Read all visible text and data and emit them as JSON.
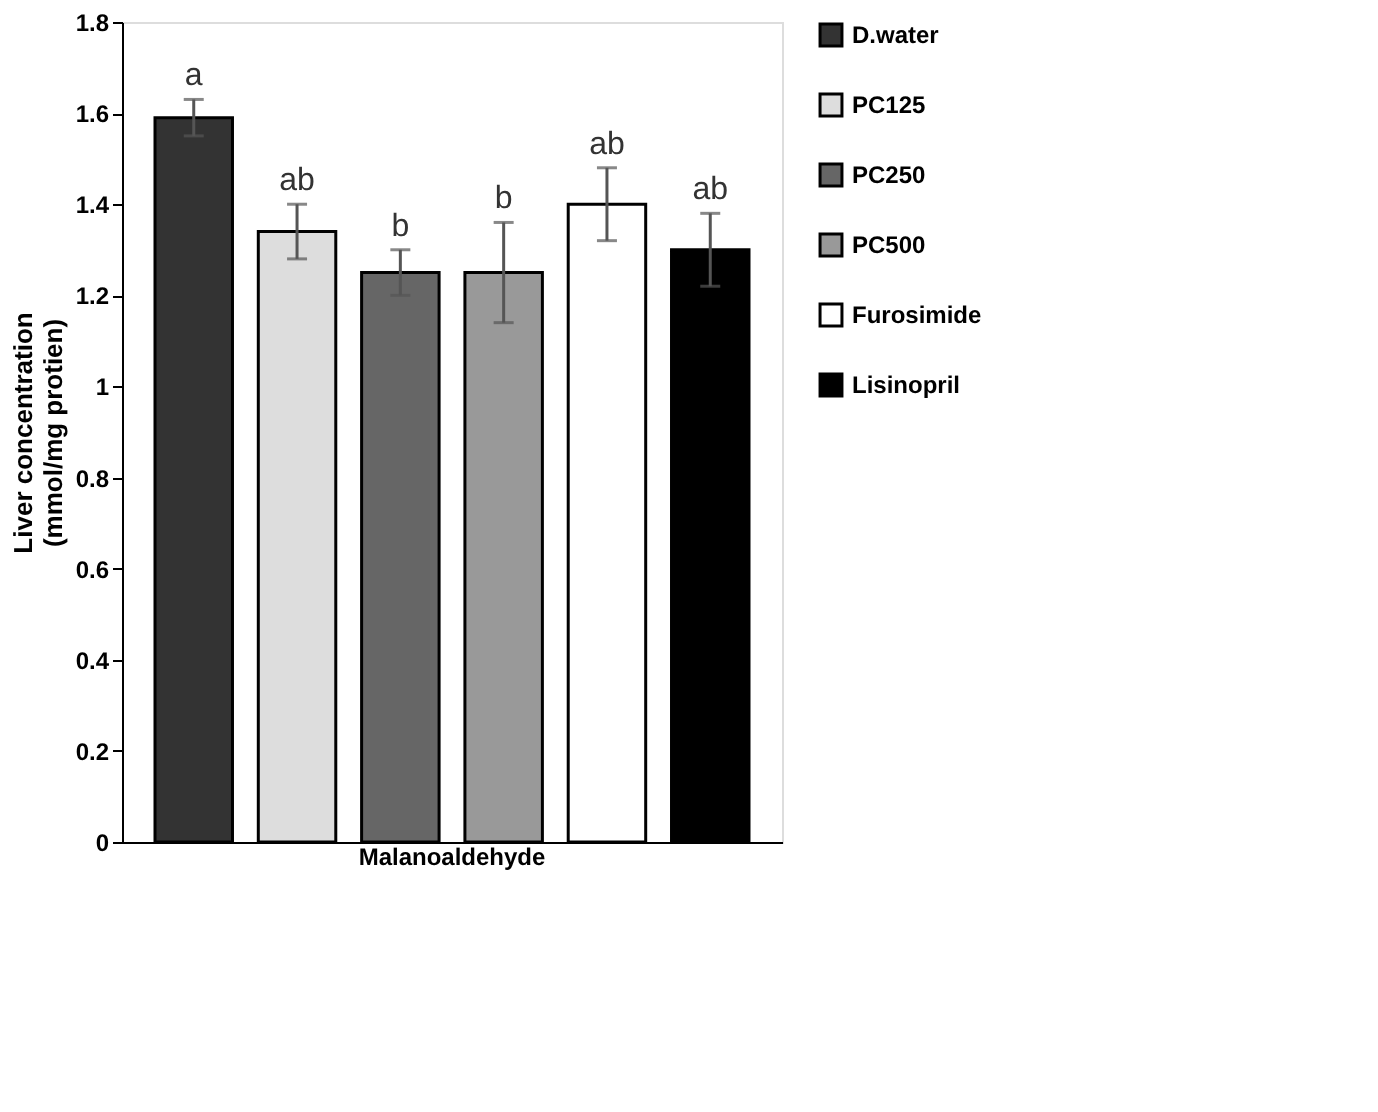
{
  "chart_data": {
    "type": "bar",
    "ylabel": "Liver concentration\n(mmol/mg protien)",
    "categories": [
      "Malanoaldehyde"
    ],
    "series": [
      {
        "name": "D.water",
        "color": "#333333",
        "values": [
          1.59
        ],
        "errors": [
          0.04
        ]
      },
      {
        "name": "PC125",
        "color": "#dddddd",
        "values": [
          1.34
        ],
        "errors": [
          0.06
        ]
      },
      {
        "name": "PC250",
        "color": "#666666",
        "values": [
          1.25
        ],
        "errors": [
          0.05
        ]
      },
      {
        "name": "PC500",
        "color": "#999999",
        "values": [
          1.25
        ],
        "errors": [
          0.11
        ]
      },
      {
        "name": "Furosimide",
        "color": "#ffffff",
        "values": [
          1.4
        ],
        "errors": [
          0.08
        ]
      },
      {
        "name": "Lisinopril",
        "color": "#000000",
        "values": [
          1.3
        ],
        "errors": [
          0.08
        ]
      }
    ],
    "annotations": [
      "a",
      "ab",
      "b",
      "b",
      "ab",
      "ab"
    ],
    "ylim": [
      0,
      1.8
    ],
    "yticks": [
      0,
      0.2,
      0.4,
      0.6,
      0.8,
      1,
      1.2,
      1.4,
      1.6,
      1.8
    ],
    "grid": false,
    "legend": "right"
  }
}
